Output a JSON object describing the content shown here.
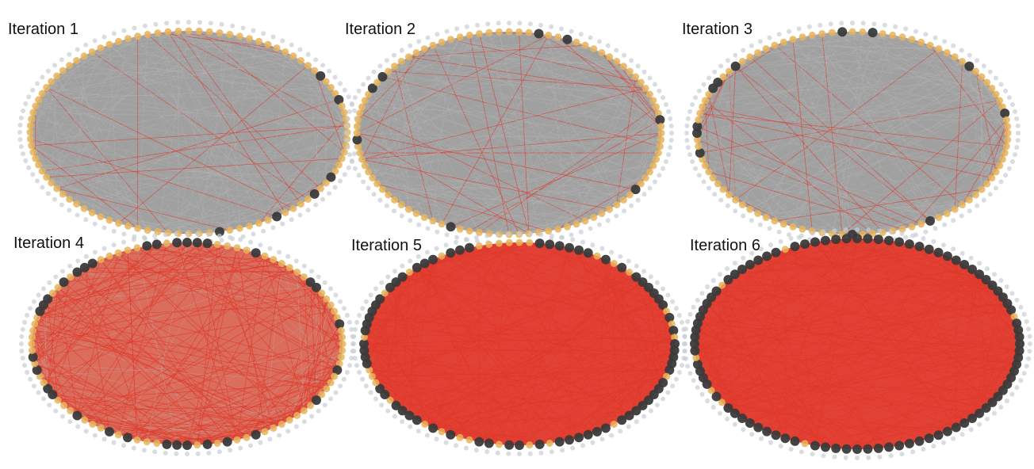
{
  "colors": {
    "background": "#ffffff",
    "grey_edge": "#8f8f8f",
    "red_edge": "#e0382a",
    "node_orange": "#e8b45a",
    "node_black": "#3a3a3a",
    "node_faint": "#c9cdd4"
  },
  "panels": [
    {
      "label": "Iteration 1",
      "activated_fraction": 0.06,
      "red_edge_fraction": 0.08
    },
    {
      "label": "Iteration 2",
      "activated_fraction": 0.08,
      "red_edge_fraction": 0.12
    },
    {
      "label": "Iteration 3",
      "activated_fraction": 0.12,
      "red_edge_fraction": 0.16
    },
    {
      "label": "Iteration 4",
      "activated_fraction": 0.33,
      "red_edge_fraction": 0.85
    },
    {
      "label": "Iteration 5",
      "activated_fraction": 0.7,
      "red_edge_fraction": 1.0
    },
    {
      "label": "Iteration 6",
      "activated_fraction": 0.93,
      "red_edge_fraction": 1.0
    }
  ]
}
